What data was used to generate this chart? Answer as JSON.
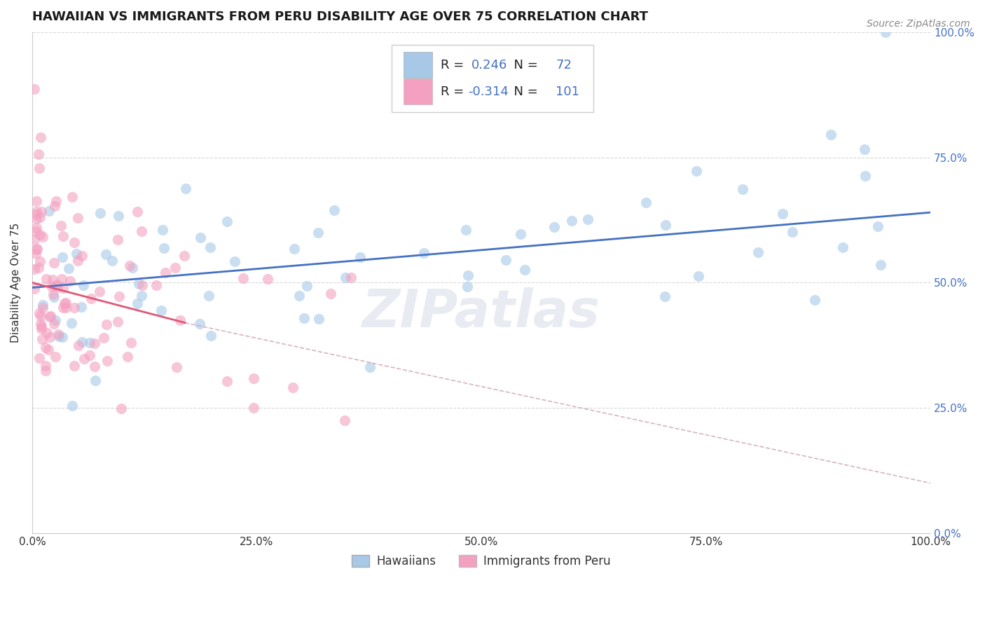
{
  "title": "HAWAIIAN VS IMMIGRANTS FROM PERU DISABILITY AGE OVER 75 CORRELATION CHART",
  "source": "Source: ZipAtlas.com",
  "ylabel": "Disability Age Over 75",
  "x_ticks": [
    0,
    25,
    50,
    75,
    100
  ],
  "x_tick_labels": [
    "0.0%",
    "25.0%",
    "50.0%",
    "75.0%",
    "100.0%"
  ],
  "y_ticks": [
    0,
    25,
    50,
    75,
    100
  ],
  "y_tick_labels": [
    "0.0%",
    "25.0%",
    "50.0%",
    "75.0%",
    "100.0%"
  ],
  "xlim": [
    0,
    100
  ],
  "ylim": [
    0,
    100
  ],
  "hawaiian_R": 0.246,
  "hawaiian_N": 72,
  "peru_R": -0.314,
  "peru_N": 101,
  "hawaiian_dot_color": "#a8c8e8",
  "peru_dot_color": "#f4a0c0",
  "hawaiian_line_color": "#4472c4",
  "peru_line_color": "#e05878",
  "dash_color": "#d0a0b0",
  "legend_label_1": "Hawaiians",
  "legend_label_2": "Immigrants from Peru",
  "watermark": "ZIPatlas",
  "title_fontsize": 13,
  "tick_fontsize": 11,
  "ylabel_fontsize": 11,
  "source_fontsize": 10,
  "background_color": "#ffffff",
  "grid_color": "#d8d8d8",
  "text_color": "#333333",
  "blue_value_color": "#4472c4",
  "hawaiian_trend_x0": 0,
  "hawaiian_trend_y0": 49,
  "hawaiian_trend_x1": 100,
  "hawaiian_trend_y1": 64,
  "peru_trend_x0": 0,
  "peru_trend_y0": 50,
  "peru_trend_x1": 17,
  "peru_trend_y1": 42,
  "peru_dash_x1": 100,
  "peru_dash_y1": 10
}
